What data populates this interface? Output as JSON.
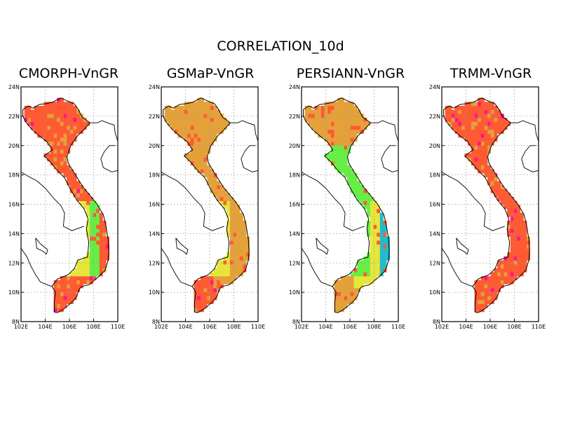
{
  "figure": {
    "title": "CORRELATION_10d"
  },
  "map": {
    "lon_range": [
      102,
      110
    ],
    "lat_range": [
      8,
      24
    ],
    "lon_ticks": [
      102,
      104,
      106,
      108,
      110
    ],
    "lat_ticks": [
      8,
      10,
      12,
      14,
      16,
      18,
      20,
      22,
      24
    ],
    "lon_tick_labels": [
      "102E",
      "104E",
      "106E",
      "108E",
      "110E"
    ],
    "lat_tick_labels": [
      "8N",
      "10N",
      "12N",
      "14N",
      "16N",
      "18N",
      "20N",
      "22N",
      "24N"
    ],
    "grid": "dotted"
  },
  "colors": {
    "highest": "#ff1493",
    "high": "#ff5a32",
    "mid_high": "#e4a13a",
    "mid": "#e6e63a",
    "mid_low": "#66ee44",
    "low": "#22bbcc",
    "lowest": "#3344cc"
  },
  "panels": [
    {
      "title": "CMORPH-VnGR",
      "regions": {
        "north": "high",
        "north_central": "high",
        "central_coast": "high",
        "central_highlands": "mid_low",
        "central_inland": "mid",
        "southeast": "high",
        "mekong": "high"
      }
    },
    {
      "title": "GSMaP-VnGR",
      "regions": {
        "north": "mid_high",
        "north_central": "mid_high",
        "central_coast": "mid_high",
        "central_highlands": "mid_high",
        "central_inland": "mid",
        "southeast": "mid_high",
        "mekong": "high"
      }
    },
    {
      "title": "PERSIANN-VnGR",
      "regions": {
        "north": "mid_high",
        "north_central": "mid_low",
        "central_coast": "low",
        "central_highlands": "mid",
        "central_inland": "mid_low",
        "southeast": "mid",
        "mekong": "mid_high"
      }
    },
    {
      "title": "TRMM-VnGR",
      "regions": {
        "north": "high",
        "north_central": "high",
        "central_coast": "high",
        "central_highlands": "high",
        "central_inland": "high",
        "southeast": "high",
        "mekong": "high"
      }
    }
  ]
}
